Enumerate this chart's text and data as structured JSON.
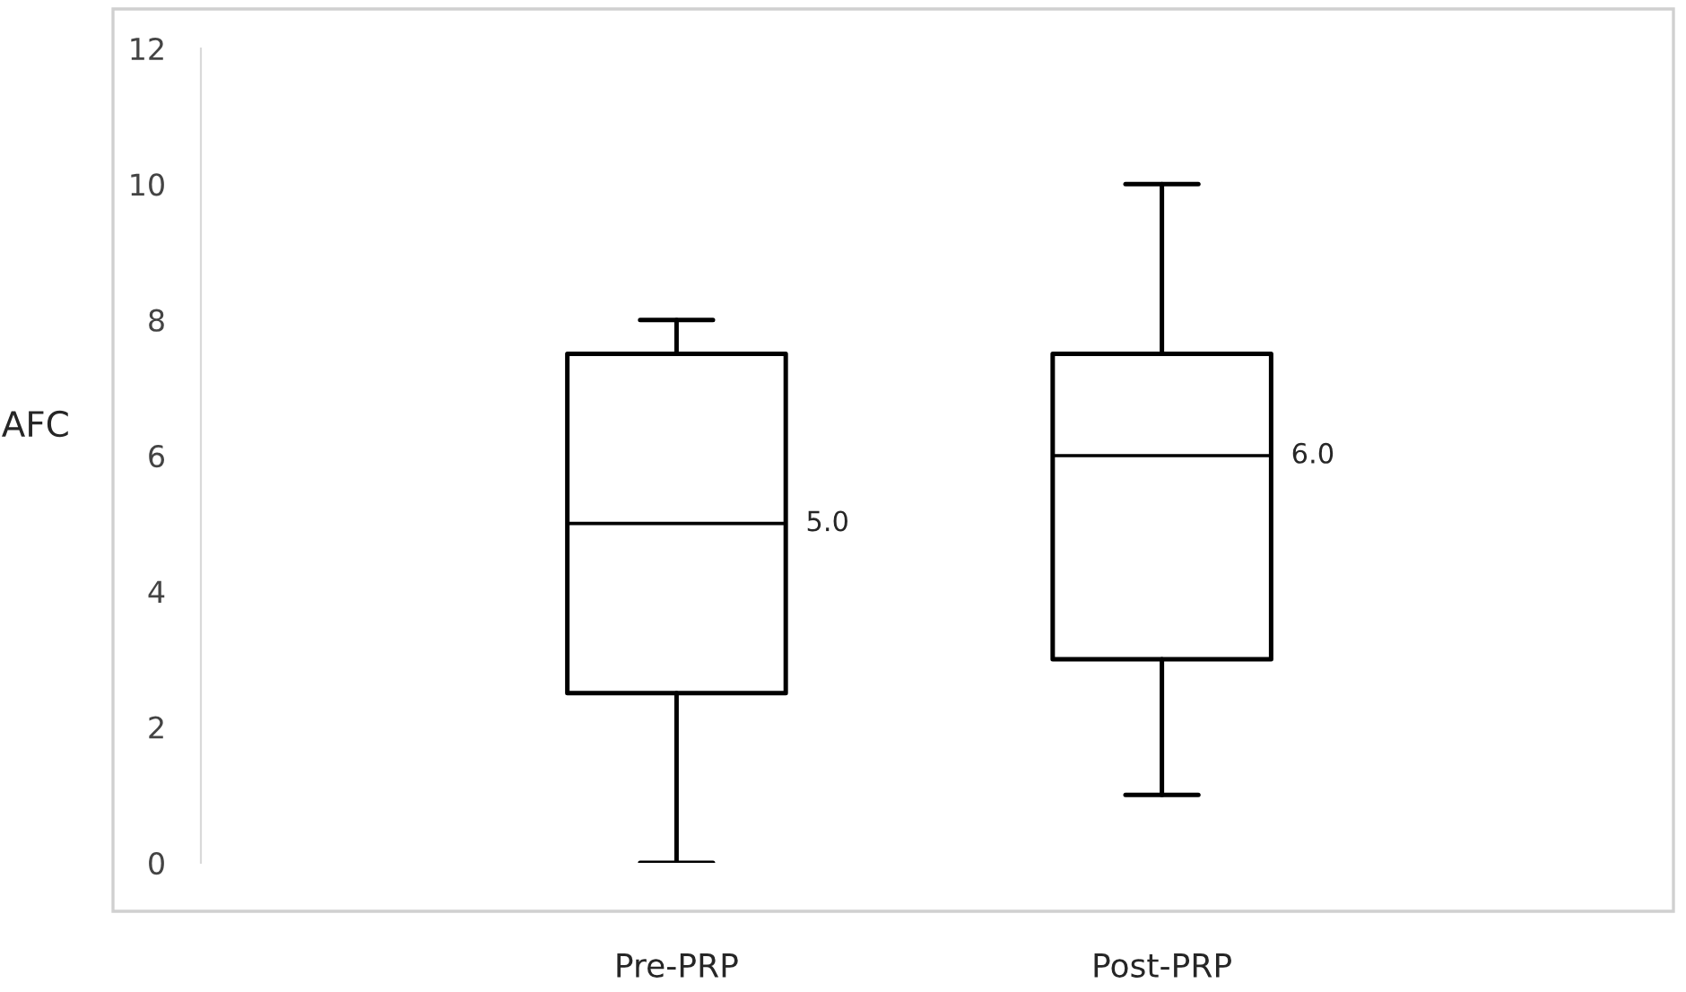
{
  "chart_data": {
    "type": "box",
    "ylabel": "AFC",
    "categories": [
      "Pre-PRP",
      "Post-PRP"
    ],
    "boxes": [
      {
        "low": 0,
        "q1": 2.5,
        "median": 5,
        "q3": 7.5,
        "high": 8
      },
      {
        "low": 1,
        "q1": 3,
        "median": 6,
        "q3": 7.5,
        "high": 10
      }
    ],
    "ylim": [
      0,
      12
    ],
    "yticks": [
      0,
      2,
      4,
      6,
      8,
      10,
      12
    ],
    "grid": false,
    "legend": false,
    "annotations": [
      "5.0",
      "6.0"
    ]
  }
}
